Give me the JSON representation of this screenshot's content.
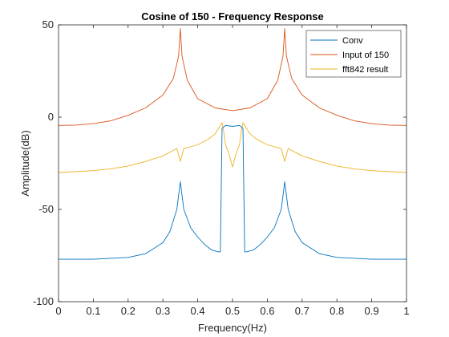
{
  "chart_data": {
    "type": "line",
    "title": "Cosine of 150 - Frequency Response",
    "xlabel": "Frequency(Hz)",
    "ylabel": "Amplitude(dB)",
    "xlim": [
      0,
      1
    ],
    "ylim": [
      -100,
      50
    ],
    "xticks": [
      "0",
      "0.1",
      "0.2",
      "0.3",
      "0.4",
      "0.5",
      "0.6",
      "0.7",
      "0.8",
      "0.9",
      "1"
    ],
    "yticks": [
      "50",
      "0",
      "-50",
      "-100"
    ],
    "grid": false,
    "legend_position": "top-right",
    "series": [
      {
        "name": "Conv",
        "color": "#0072BD",
        "x": [
          0,
          0.05,
          0.1,
          0.15,
          0.2,
          0.25,
          0.3,
          0.32,
          0.34,
          0.35,
          0.36,
          0.38,
          0.4,
          0.42,
          0.44,
          0.46,
          0.465,
          0.47,
          0.48,
          0.5,
          0.52,
          0.53,
          0.535,
          0.54,
          0.56,
          0.58,
          0.6,
          0.62,
          0.64,
          0.65,
          0.66,
          0.68,
          0.7,
          0.75,
          0.8,
          0.85,
          0.9,
          0.95,
          1
        ],
        "y": [
          -77,
          -77,
          -77,
          -76.5,
          -76,
          -74,
          -68,
          -62,
          -50,
          -35,
          -50,
          -60,
          -65,
          -69,
          -72,
          -73,
          -73,
          -6,
          -4.5,
          -5,
          -4.5,
          -6,
          -73,
          -73,
          -72,
          -69,
          -65,
          -60,
          -50,
          -35,
          -50,
          -62,
          -68,
          -74,
          -76,
          -76.5,
          -77,
          -77,
          -77
        ]
      },
      {
        "name": "Input of 150",
        "color": "#D95319",
        "x": [
          0,
          0.05,
          0.1,
          0.15,
          0.2,
          0.25,
          0.3,
          0.33,
          0.345,
          0.35,
          0.355,
          0.37,
          0.4,
          0.45,
          0.5,
          0.55,
          0.6,
          0.63,
          0.645,
          0.65,
          0.655,
          0.67,
          0.7,
          0.75,
          0.8,
          0.85,
          0.9,
          0.95,
          1
        ],
        "y": [
          -4.5,
          -4.3,
          -3.5,
          -2,
          1,
          5,
          12,
          21,
          33,
          48,
          33,
          20,
          10,
          5,
          3.5,
          5,
          10,
          20,
          33,
          48,
          33,
          21,
          12,
          5,
          1,
          -2,
          -3.5,
          -4.3,
          -4.5
        ]
      },
      {
        "name": "fft842 result",
        "color": "#EDB120",
        "x": [
          0,
          0.05,
          0.1,
          0.15,
          0.2,
          0.25,
          0.3,
          0.34,
          0.35,
          0.36,
          0.4,
          0.43,
          0.45,
          0.47,
          0.475,
          0.48,
          0.49,
          0.5,
          0.51,
          0.52,
          0.525,
          0.53,
          0.55,
          0.57,
          0.6,
          0.64,
          0.65,
          0.66,
          0.7,
          0.75,
          0.8,
          0.85,
          0.9,
          0.95,
          1
        ],
        "y": [
          -30,
          -29.5,
          -29,
          -28,
          -26.5,
          -24,
          -21,
          -17,
          -24,
          -17,
          -15,
          -12,
          -9,
          -3,
          -8,
          -15,
          -20,
          -27,
          -20,
          -15,
          -8,
          -3,
          -9,
          -12,
          -15,
          -17,
          -24,
          -17,
          -21,
          -24,
          -26.5,
          -28,
          -29,
          -29.5,
          -30
        ]
      }
    ]
  }
}
